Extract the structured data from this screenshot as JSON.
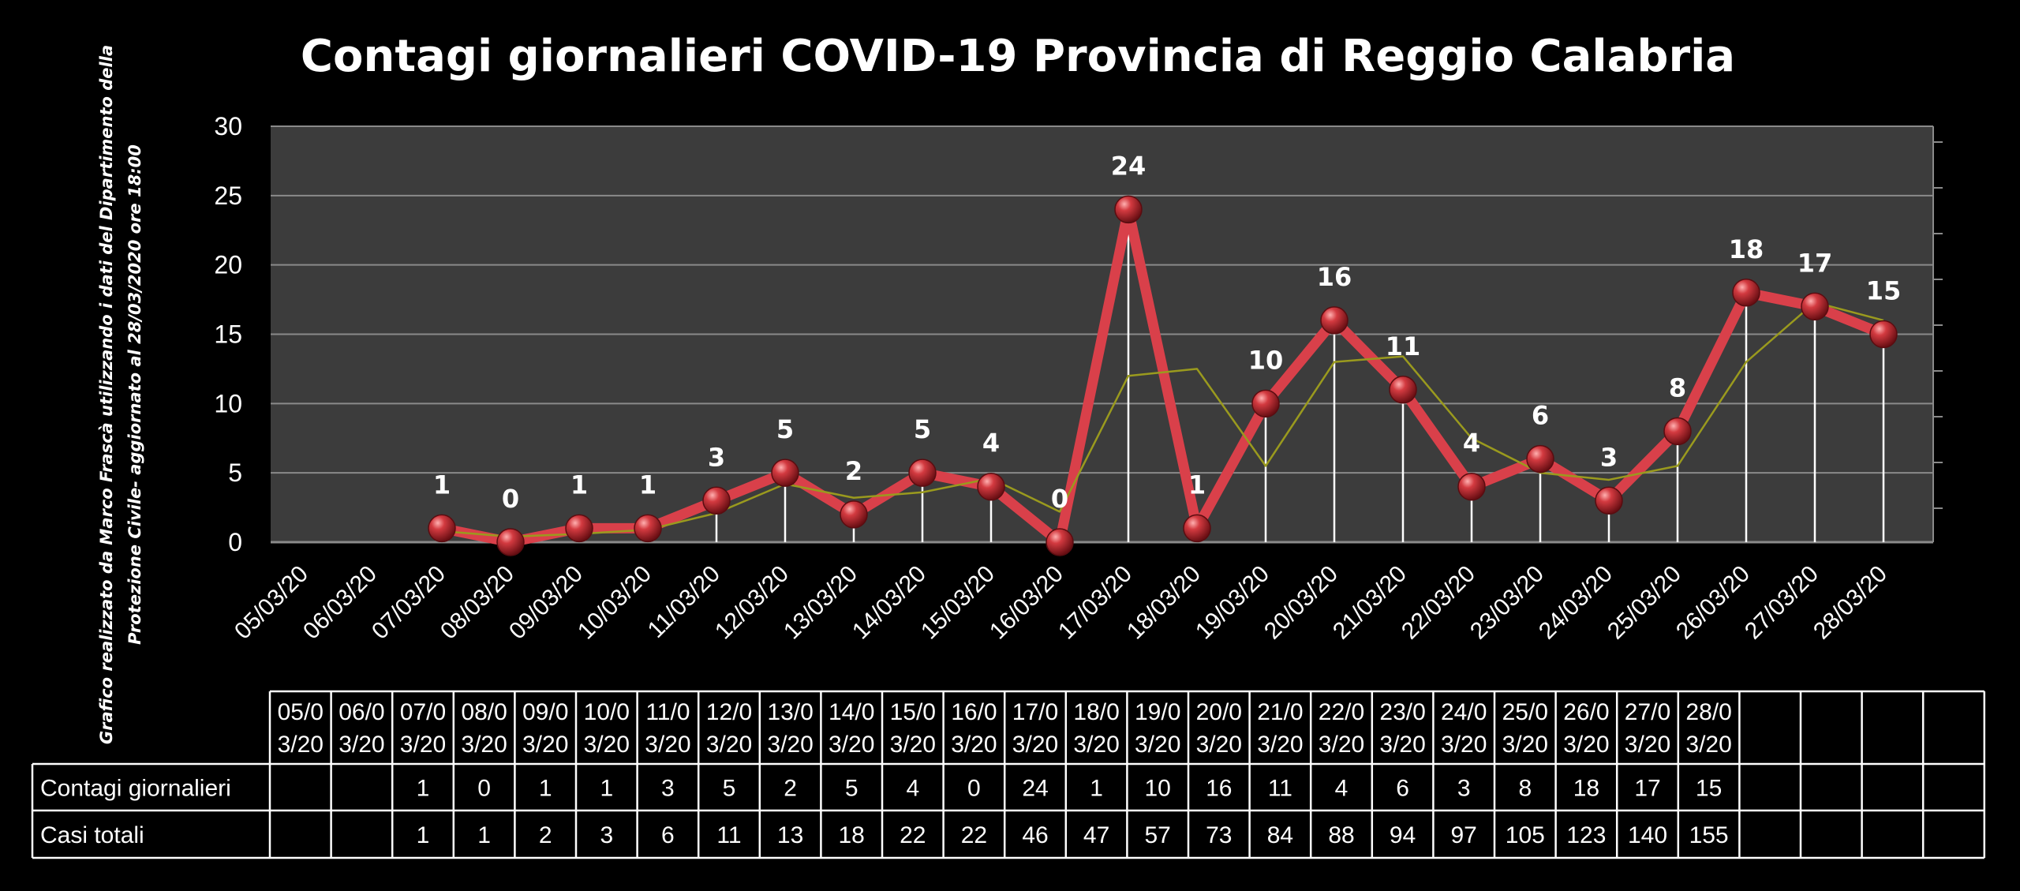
{
  "chart_data": {
    "type": "line",
    "title": "Contagi  giornalieri COVID-19 Provincia di Reggio Calabria",
    "side_note_line1": "Grafico  realizzato da Marco Frascà  utilizzando i dati del Dipartimento  della",
    "side_note_line2": "Protezione Civile- aggiornato al 28/03/2020 ore 18:00",
    "ylim": [
      0,
      30
    ],
    "yticks": [
      0,
      5,
      10,
      15,
      20,
      25,
      30
    ],
    "grid": true,
    "categories": [
      "05/03/20",
      "06/03/20",
      "07/03/20",
      "08/03/20",
      "09/03/20",
      "10/03/20",
      "11/03/20",
      "12/03/20",
      "13/03/20",
      "14/03/20",
      "15/03/20",
      "16/03/20",
      "17/03/20",
      "18/03/20",
      "19/03/20",
      "20/03/20",
      "21/03/20",
      "22/03/20",
      "23/03/20",
      "24/03/20",
      "25/03/20",
      "26/03/20",
      "27/03/20",
      "28/03/20"
    ],
    "series": [
      {
        "name": "Contagi giornalieri",
        "values": [
          null,
          null,
          1,
          0,
          1,
          1,
          3,
          5,
          2,
          5,
          4,
          0,
          24,
          1,
          10,
          16,
          11,
          4,
          6,
          3,
          8,
          18,
          17,
          15
        ],
        "color": "#d9404a"
      },
      {
        "name": "",
        "values": [
          null,
          null,
          0.8,
          0.4,
          0.6,
          0.9,
          2.1,
          4.2,
          3.2,
          3.6,
          4.6,
          2.2,
          12.0,
          12.5,
          5.5,
          13.0,
          13.4,
          7.5,
          5.0,
          4.5,
          5.5,
          13.0,
          17.3,
          16.0
        ],
        "color": "#9a9a1e"
      }
    ],
    "table": {
      "header_cells": [
        "05/0\n3/20",
        "06/0\n3/20",
        "07/0\n3/20",
        "08/0\n3/20",
        "09/0\n3/20",
        "10/0\n3/20",
        "11/0\n3/20",
        "12/0\n3/20",
        "13/0\n3/20",
        "14/0\n3/20",
        "15/0\n3/20",
        "16/0\n3/20",
        "17/0\n3/20",
        "18/0\n3/20",
        "19/0\n3/20",
        "20/0\n3/20",
        "21/0\n3/20",
        "22/0\n3/20",
        "23/0\n3/20",
        "24/0\n3/20",
        "25/0\n3/20",
        "26/0\n3/20",
        "27/0\n3/20",
        "28/0\n3/20",
        "",
        "",
        "",
        ""
      ],
      "rows": [
        {
          "label": "Contagi giornalieri",
          "cells": [
            "",
            "",
            "1",
            "0",
            "1",
            "1",
            "3",
            "5",
            "2",
            "5",
            "4",
            "0",
            "24",
            "1",
            "10",
            "16",
            "11",
            "4",
            "6",
            "3",
            "8",
            "18",
            "17",
            "15",
            "",
            "",
            "",
            ""
          ]
        },
        {
          "label": "Casi totali",
          "cells": [
            "",
            "",
            "1",
            "1",
            "2",
            "3",
            "6",
            "11",
            "13",
            "18",
            "22",
            "22",
            "46",
            "47",
            "57",
            "73",
            "84",
            "88",
            "94",
            "97",
            "105",
            "123",
            "140",
            "155",
            "",
            "",
            "",
            ""
          ]
        }
      ]
    }
  },
  "colors": {
    "background": "#000000",
    "plot_area": "#3c3c3c",
    "grid": "#8a8a8a",
    "main_line": "#d9404a",
    "trend_line": "#9a9a1e",
    "marker_fill": "#b3242c",
    "drop_line": "#ffffff"
  }
}
